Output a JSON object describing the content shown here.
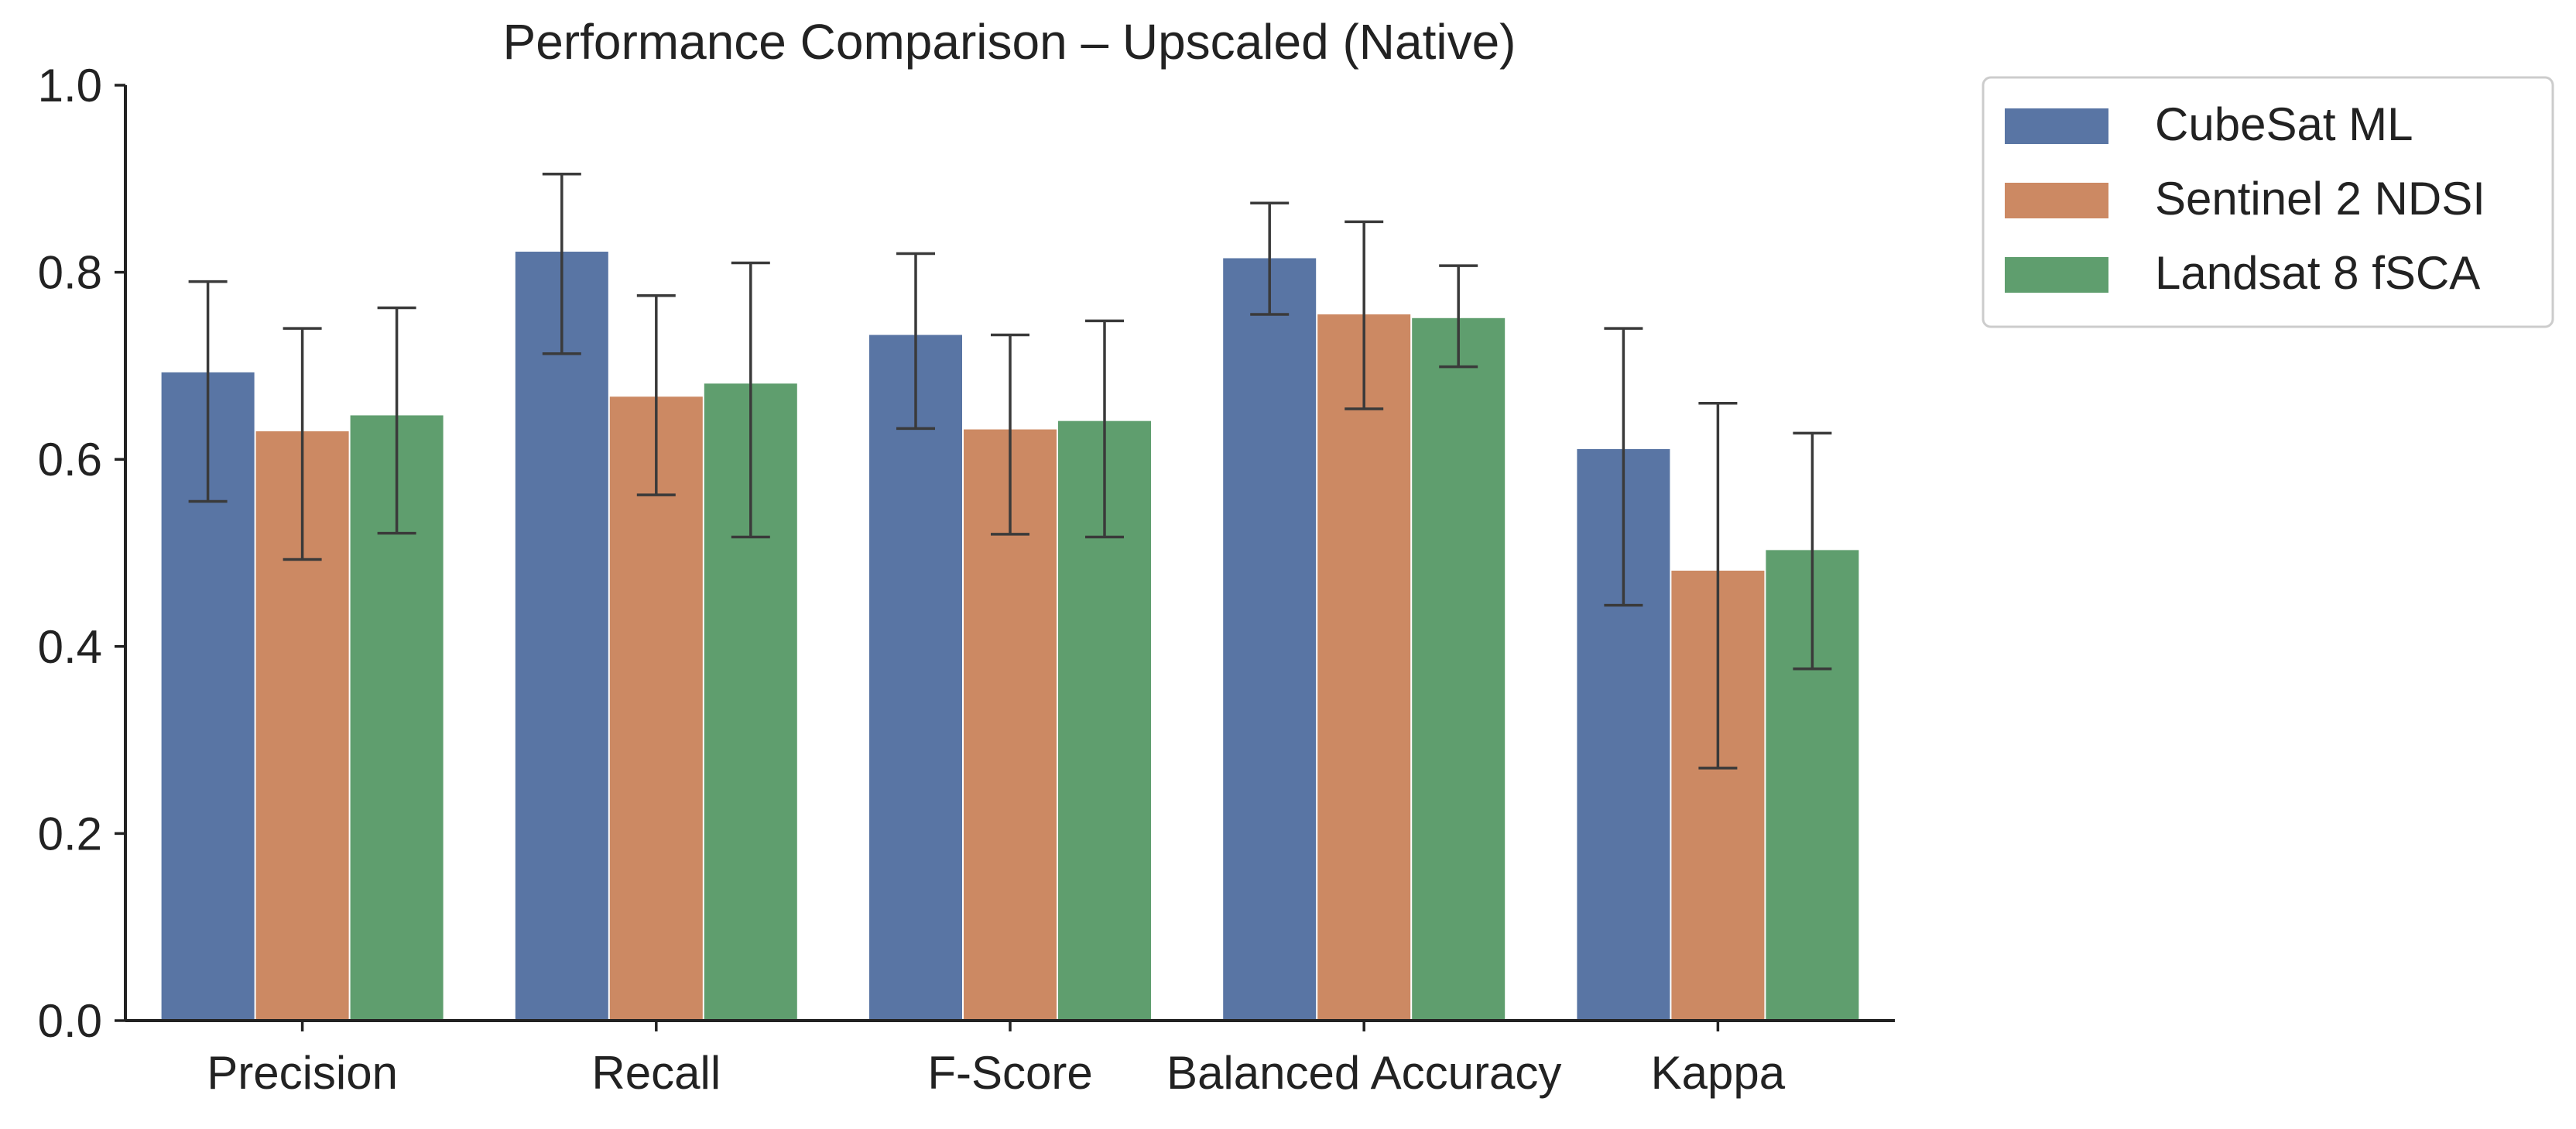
{
  "chart_data": {
    "type": "bar",
    "title": "Performance Comparison – Upscaled (Native)",
    "xlabel": "",
    "ylabel": "",
    "ylim": [
      0,
      1.0
    ],
    "yticks": [
      "0.0",
      "0.2",
      "0.4",
      "0.6",
      "0.8",
      "1.0"
    ],
    "categories": [
      "Precision",
      "Recall",
      "F-Score",
      "Balanced Accuracy",
      "Kappa"
    ],
    "grid": false,
    "legend_position": "outside-top-right",
    "series": [
      {
        "name": "CubeSat ML",
        "color": "#5975a4",
        "values": [
          0.693,
          0.822,
          0.733,
          0.815,
          0.611
        ],
        "err_low": [
          0.555,
          0.713,
          0.633,
          0.755,
          0.444
        ],
        "err_high": [
          0.79,
          0.905,
          0.82,
          0.874,
          0.74
        ]
      },
      {
        "name": "Sentinel 2 NDSI",
        "color": "#cc8963",
        "values": [
          0.63,
          0.667,
          0.632,
          0.755,
          0.481
        ],
        "err_low": [
          0.493,
          0.562,
          0.52,
          0.654,
          0.27
        ],
        "err_high": [
          0.74,
          0.775,
          0.733,
          0.854,
          0.66
        ]
      },
      {
        "name": "Landsat 8 fSCA",
        "color": "#5f9e6e",
        "values": [
          0.647,
          0.681,
          0.641,
          0.751,
          0.503
        ],
        "err_low": [
          0.521,
          0.517,
          0.517,
          0.699,
          0.376
        ],
        "err_high": [
          0.762,
          0.81,
          0.748,
          0.807,
          0.628
        ]
      }
    ]
  }
}
